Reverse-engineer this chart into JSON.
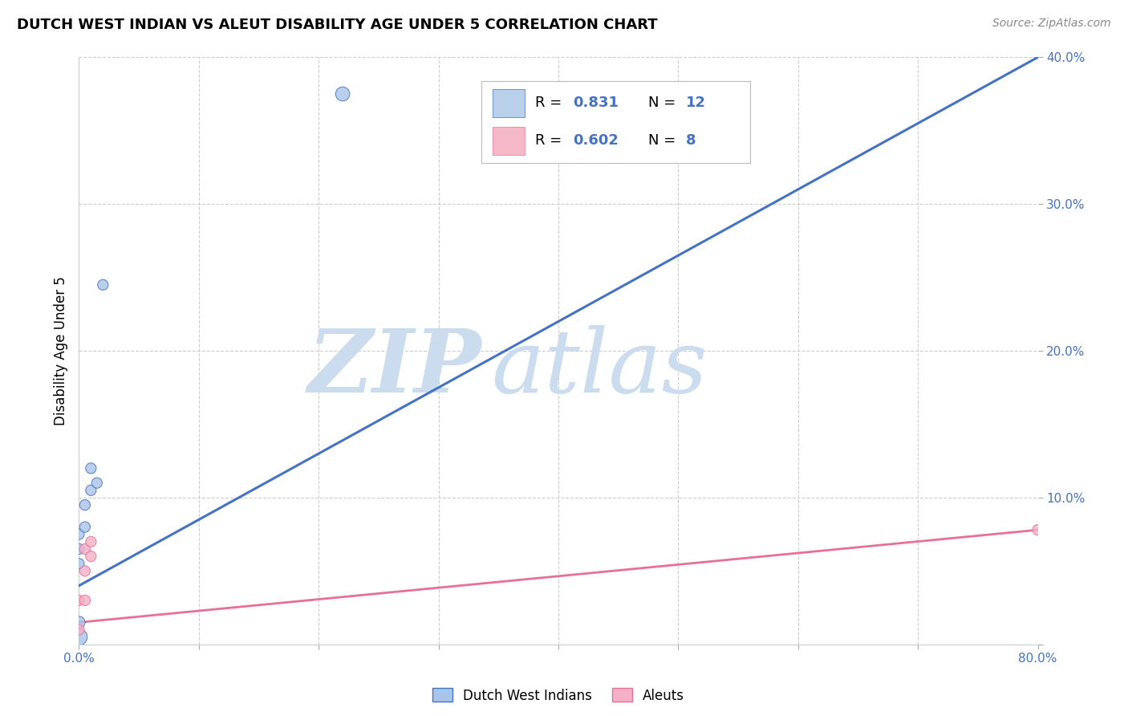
{
  "title": "DUTCH WEST INDIAN VS ALEUT DISABILITY AGE UNDER 5 CORRELATION CHART",
  "source": "Source: ZipAtlas.com",
  "ylabel": "Disability Age Under 5",
  "xlim": [
    0,
    0.8
  ],
  "ylim": [
    0,
    0.4
  ],
  "xticks": [
    0.0,
    0.1,
    0.2,
    0.3,
    0.4,
    0.5,
    0.6,
    0.7,
    0.8
  ],
  "xticklabels": [
    "0.0%",
    "",
    "",
    "",
    "",
    "",
    "",
    "",
    "80.0%"
  ],
  "yticks": [
    0.0,
    0.1,
    0.2,
    0.3,
    0.4
  ],
  "yticklabels": [
    "",
    "10.0%",
    "20.0%",
    "30.0%",
    "40.0%"
  ],
  "legend_box_color_blue": "#b8d0ea",
  "legend_box_color_pink": "#f5b8c8",
  "legend_r_blue": "0.831",
  "legend_n_blue": "12",
  "legend_r_pink": "0.602",
  "legend_n_pink": "8",
  "watermark_zip": "ZIP",
  "watermark_atlas": "atlas",
  "watermark_color": "#ccdcef",
  "blue_scatter_x": [
    0.0,
    0.0,
    0.0,
    0.0,
    0.0,
    0.005,
    0.005,
    0.01,
    0.01,
    0.015,
    0.02,
    0.22
  ],
  "blue_scatter_y": [
    0.005,
    0.015,
    0.055,
    0.065,
    0.075,
    0.08,
    0.095,
    0.105,
    0.12,
    0.11,
    0.245,
    0.375
  ],
  "blue_scatter_s": [
    220,
    120,
    90,
    90,
    90,
    90,
    90,
    90,
    90,
    90,
    90,
    160
  ],
  "pink_scatter_x": [
    0.0,
    0.0,
    0.005,
    0.005,
    0.005,
    0.01,
    0.01,
    0.8
  ],
  "pink_scatter_y": [
    0.01,
    0.03,
    0.03,
    0.05,
    0.065,
    0.06,
    0.07,
    0.078
  ],
  "pink_scatter_s": [
    90,
    90,
    90,
    90,
    90,
    90,
    90,
    90
  ],
  "blue_line_x": [
    0.0,
    0.8
  ],
  "blue_line_y": [
    0.04,
    0.4
  ],
  "pink_line_x": [
    0.0,
    0.8
  ],
  "pink_line_y": [
    0.015,
    0.078
  ],
  "blue_color": "#4472c4",
  "pink_color": "#e87098",
  "blue_scatter_color": "#a8c4e8",
  "pink_scatter_color": "#f4b0c4",
  "grid_color": "#cccccc",
  "background_color": "#ffffff",
  "legend_label_blue": "Dutch West Indians",
  "legend_label_pink": "Aleuts",
  "legend_color_text": "#4472c4",
  "title_fontsize": 13,
  "source_fontsize": 10,
  "tick_fontsize": 11,
  "ylabel_fontsize": 12
}
